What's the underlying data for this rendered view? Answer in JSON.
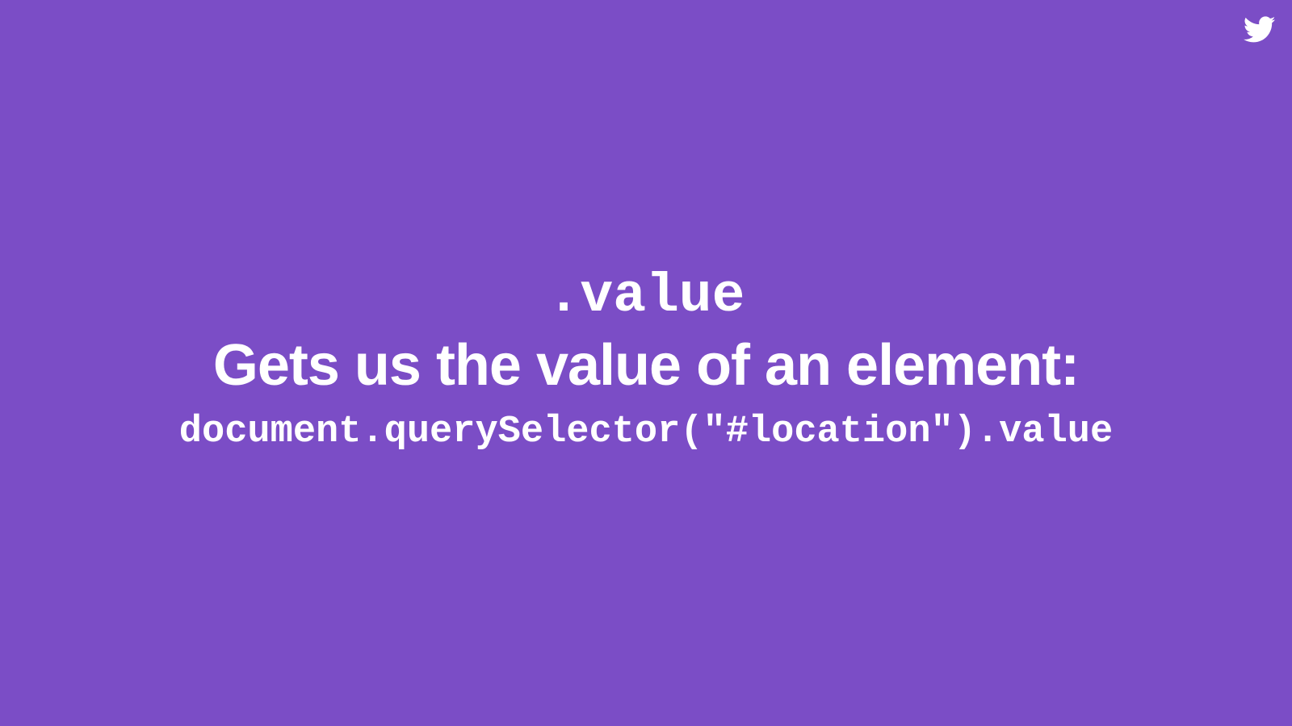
{
  "slide": {
    "code_heading": ".value",
    "heading": "Gets us the value of an element:",
    "code_example": "document.querySelector(\"#location\").value"
  },
  "icons": {
    "corner": "twitter-icon"
  },
  "colors": {
    "background": "#7b4dc6",
    "text": "#ffffff"
  }
}
